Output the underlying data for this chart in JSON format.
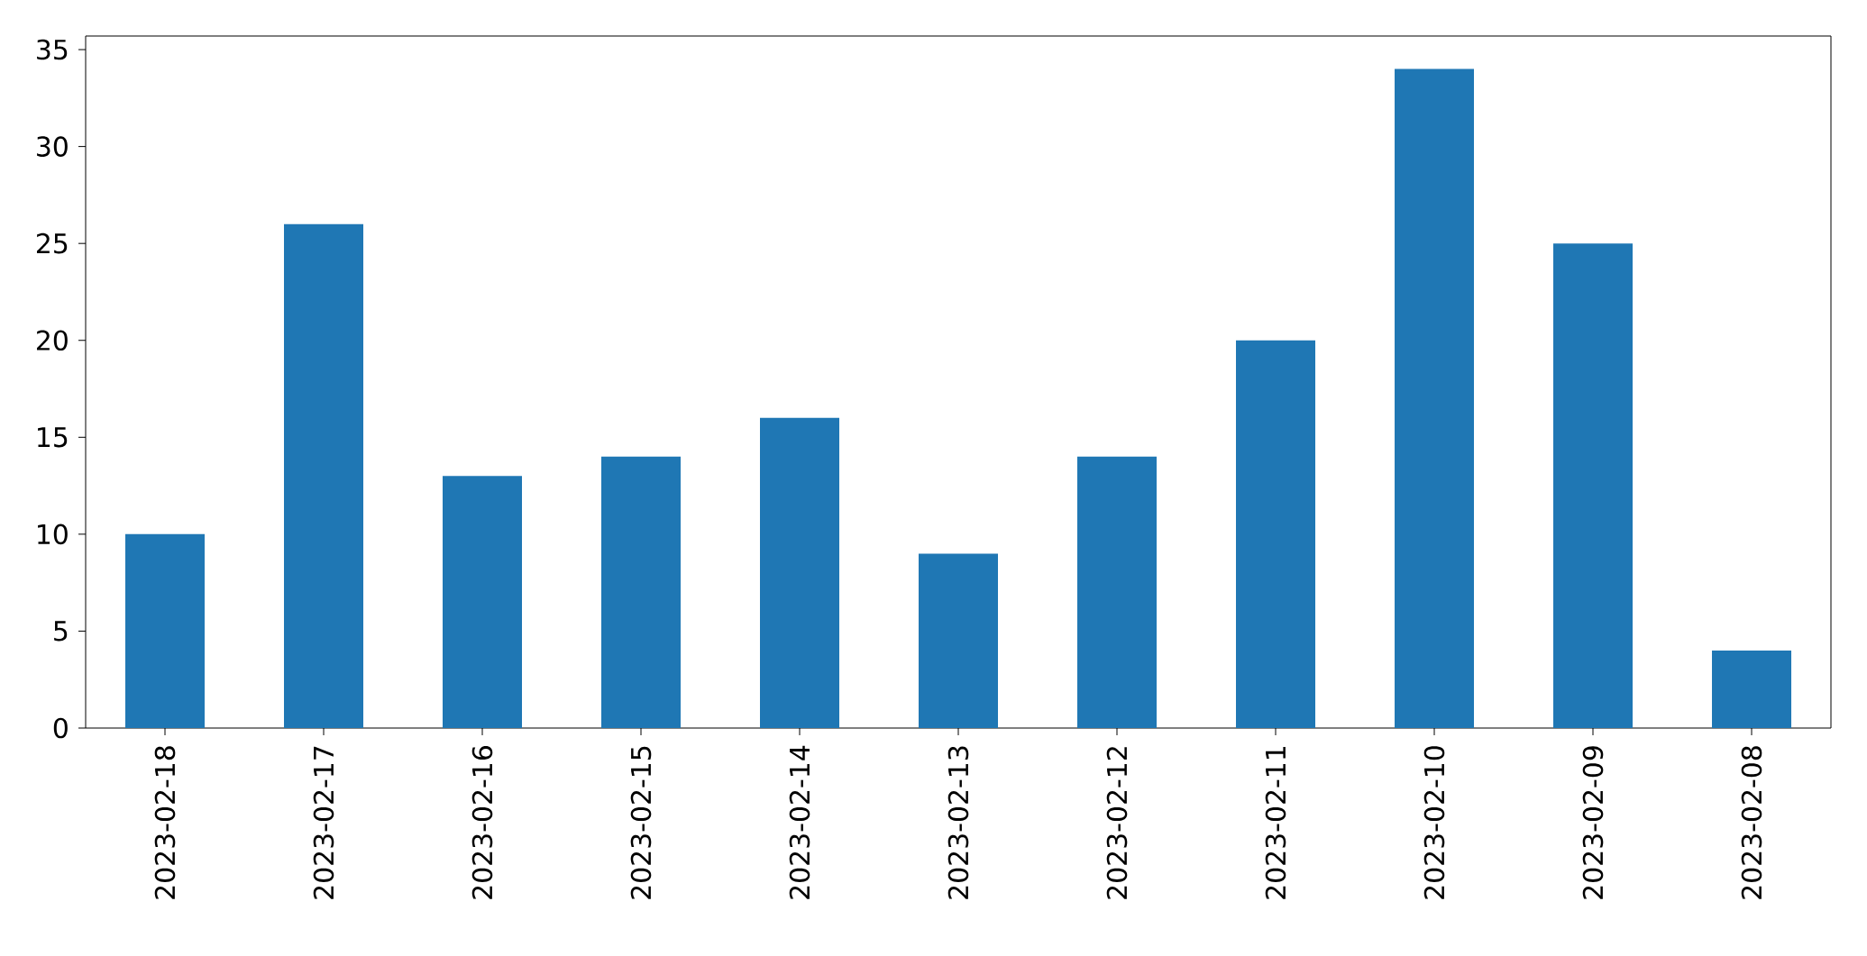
{
  "chart_data": {
    "type": "bar",
    "categories": [
      "2023-02-18",
      "2023-02-17",
      "2023-02-16",
      "2023-02-15",
      "2023-02-14",
      "2023-02-13",
      "2023-02-12",
      "2023-02-11",
      "2023-02-10",
      "2023-02-09",
      "2023-02-08"
    ],
    "values": [
      10,
      26,
      13,
      14,
      16,
      9,
      14,
      20,
      34,
      25,
      4
    ],
    "color": "#1f77b4",
    "ylim": [
      0,
      35.7
    ],
    "yticks": [
      0,
      5,
      10,
      15,
      20,
      25,
      30,
      35
    ]
  }
}
